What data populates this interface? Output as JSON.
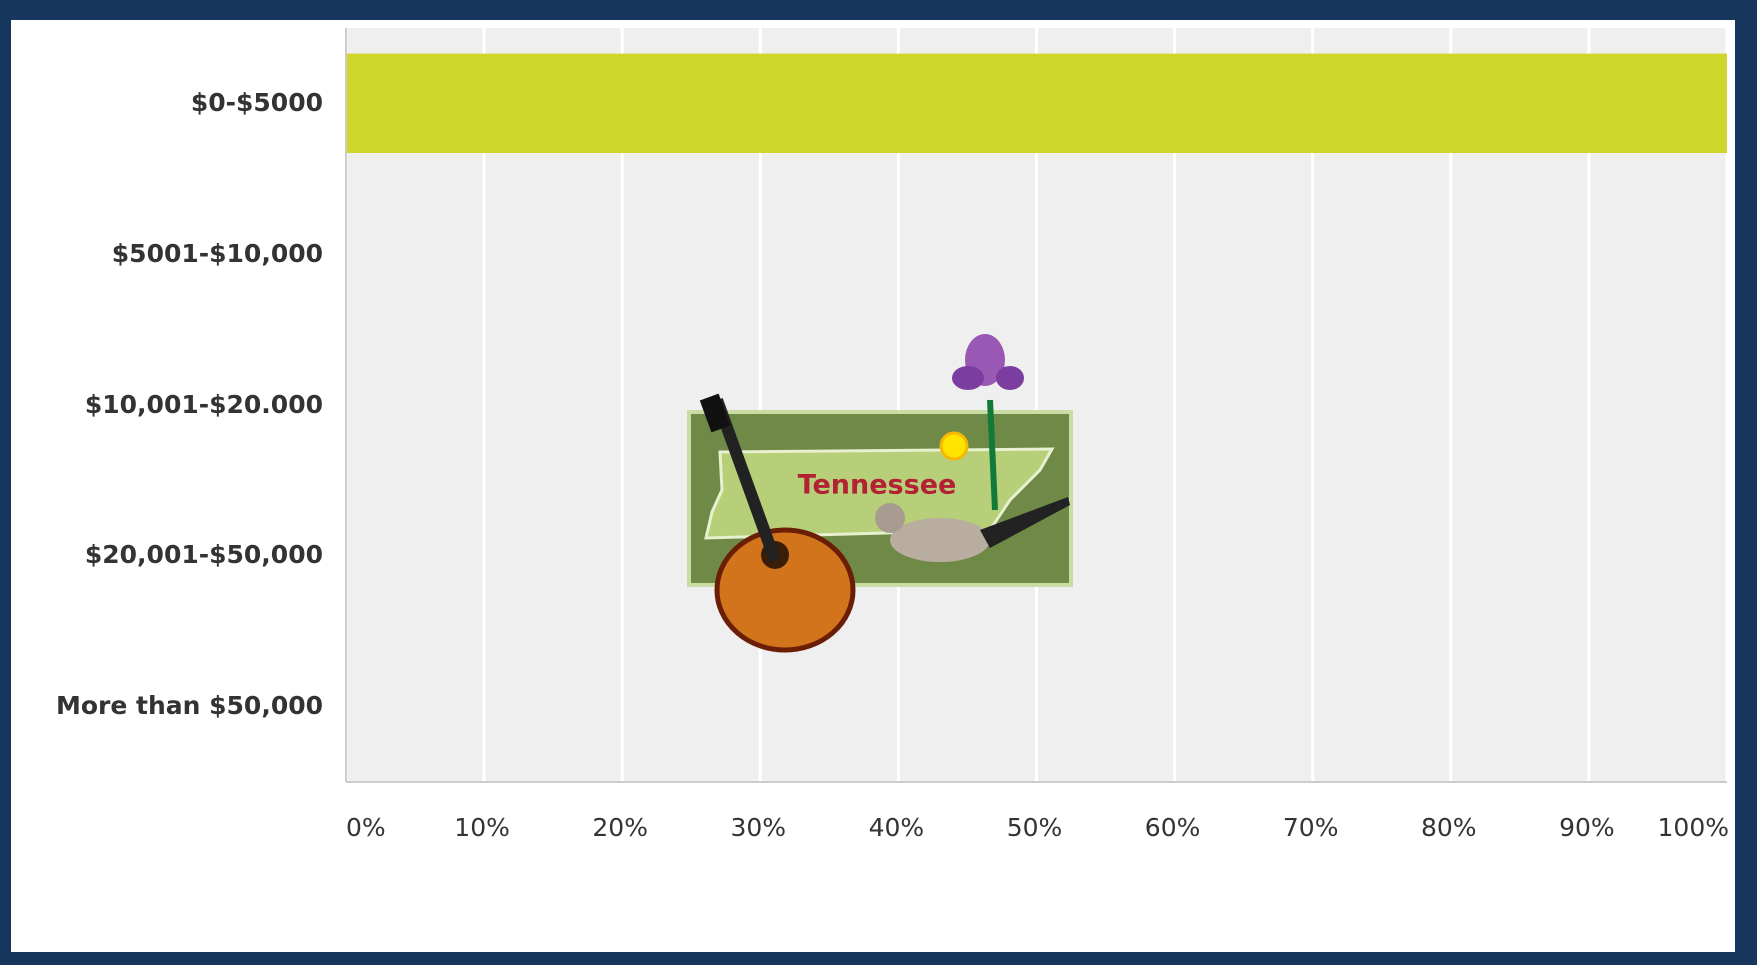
{
  "chart_data": {
    "type": "bar",
    "orientation": "horizontal",
    "categories": [
      "$0-$5000",
      "$5001-$10,000",
      "$10,001-$20.000",
      "$20,001-$50,000",
      "More than $50,000"
    ],
    "values": [
      100,
      0,
      0,
      0,
      0
    ],
    "color": "#cfd62a",
    "xlim": [
      0,
      100
    ],
    "xticks": [
      {
        "value": 0,
        "label": "0%"
      },
      {
        "value": 10,
        "label": "10%"
      },
      {
        "value": 20,
        "label": "20%"
      },
      {
        "value": 30,
        "label": "30%"
      },
      {
        "value": 40,
        "label": "40%"
      },
      {
        "value": 50,
        "label": "50%"
      },
      {
        "value": 60,
        "label": "60%"
      },
      {
        "value": 70,
        "label": "70%"
      },
      {
        "value": 80,
        "label": "80%"
      },
      {
        "value": 90,
        "label": "90%"
      },
      {
        "value": 100,
        "label": "100%"
      }
    ],
    "grid": true,
    "annotation": "Tennessee"
  }
}
